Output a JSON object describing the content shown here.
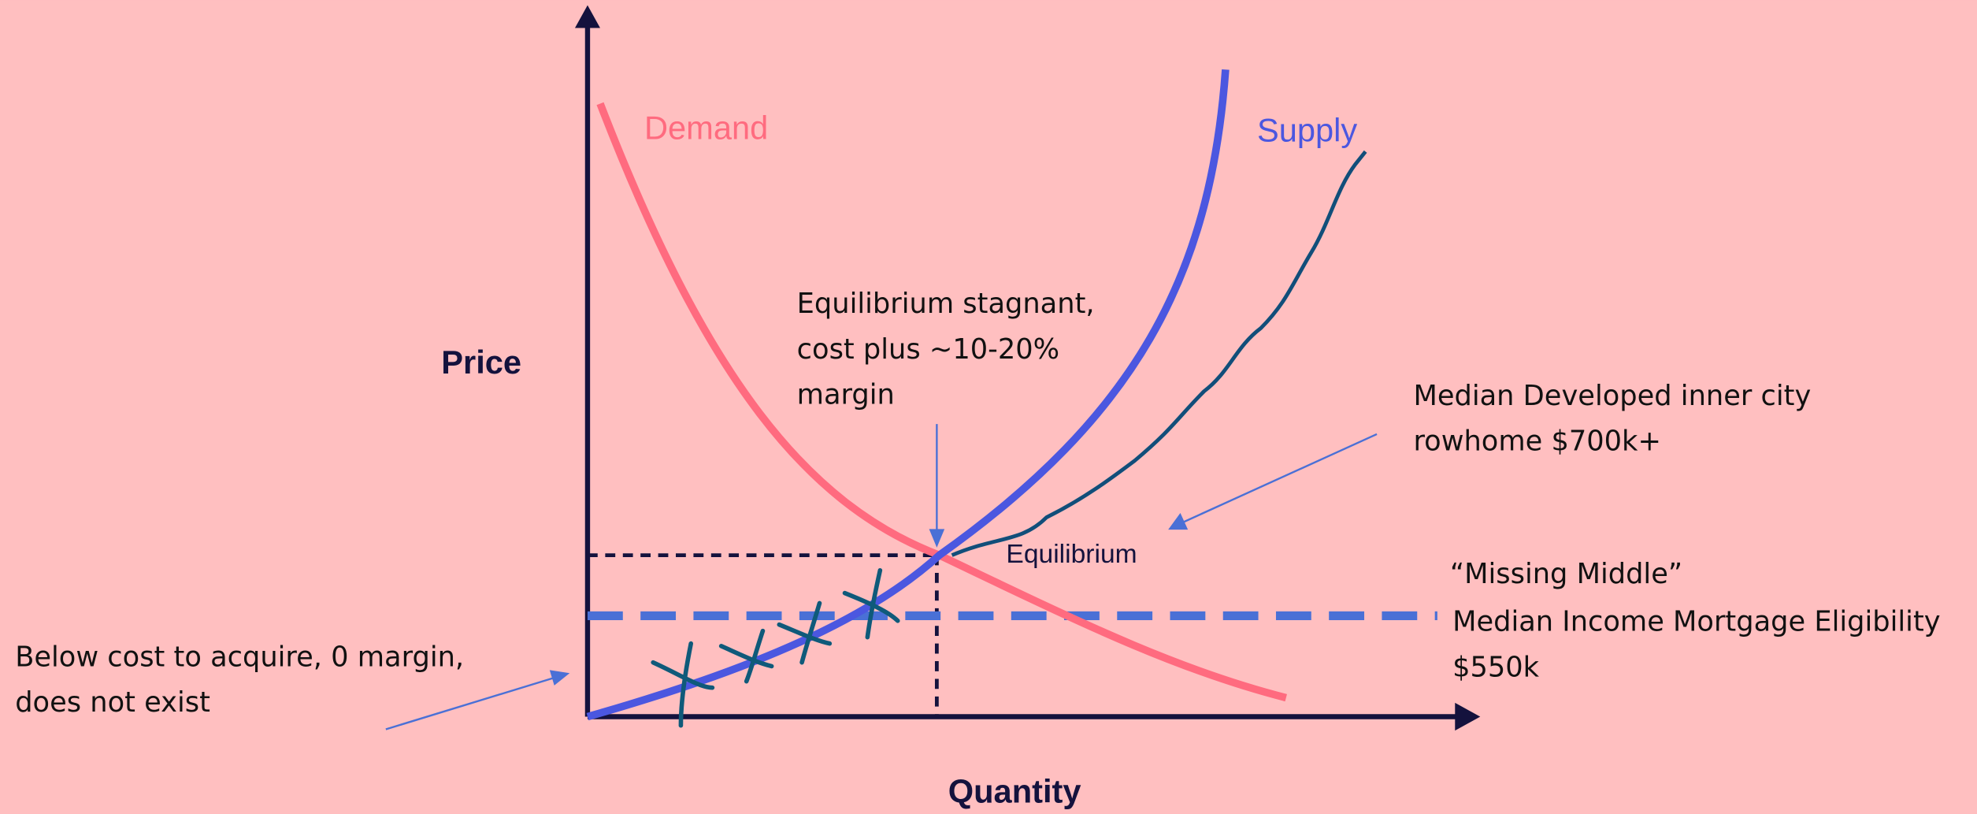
{
  "axes": {
    "y_label": "Price",
    "x_label": "Quantity"
  },
  "curves": {
    "demand": "Demand",
    "supply": "Supply",
    "equilibrium": "Equilibrium"
  },
  "annotations": {
    "equilibrium_note": [
      "Equilibrium stagnant,",
      "cost plus ~10-20%",
      "margin"
    ],
    "rowhome_note": [
      "Median Developed inner city",
      "rowhome $700k+"
    ],
    "missing_middle": [
      "“Missing Middle”",
      "Median Income Mortgage Eligibility",
      "$550k"
    ],
    "below_cost": [
      "Below cost to acquire, 0 margin,",
      "does not exist"
    ]
  }
}
